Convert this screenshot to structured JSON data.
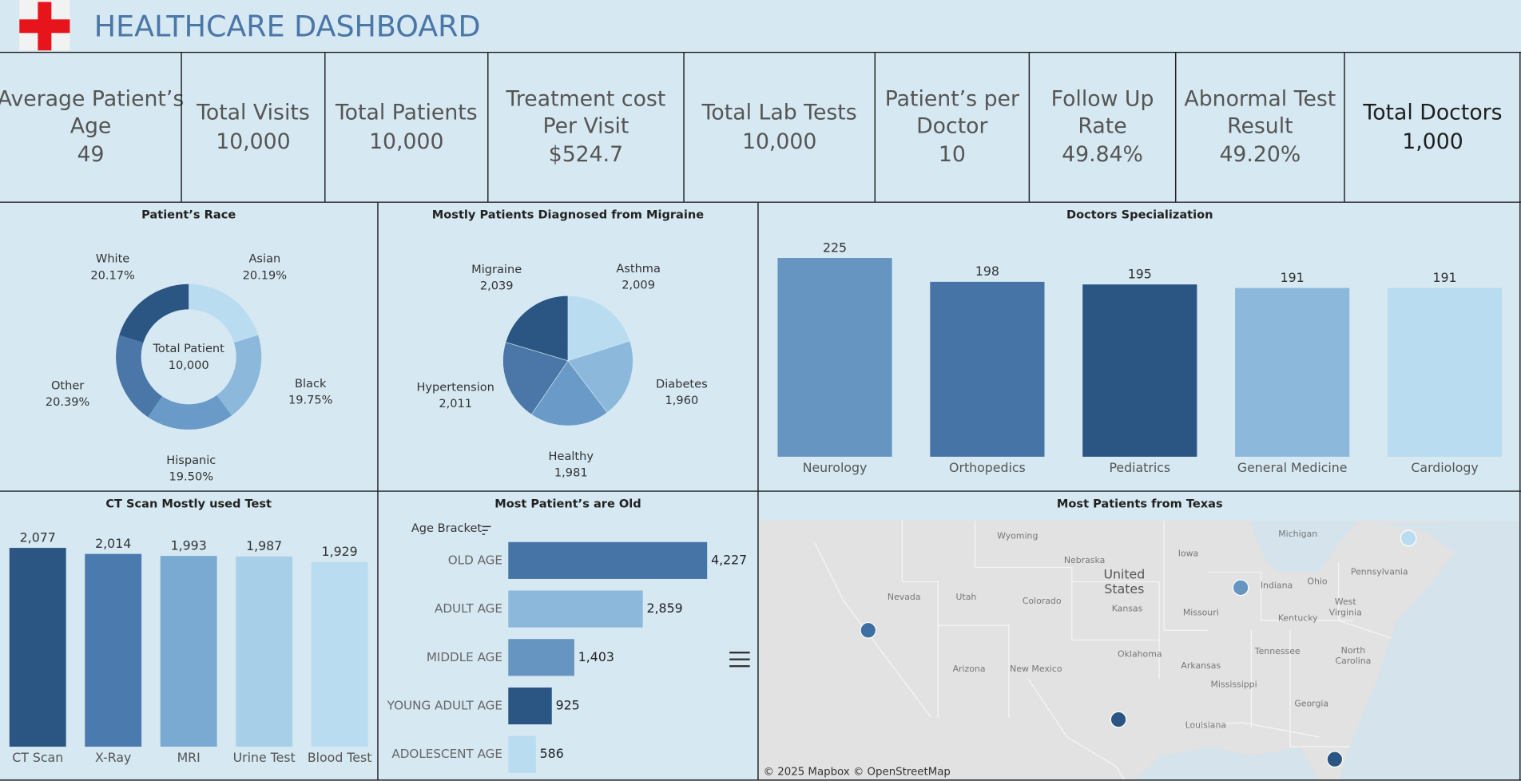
{
  "header": {
    "title": "HEALTHCARE DASHBOARD"
  },
  "kpis": [
    {
      "label_lines": [
        "Average Patient’s",
        "Age"
      ],
      "value": "49"
    },
    {
      "label_lines": [
        "Total Visits"
      ],
      "value": "10,000"
    },
    {
      "label_lines": [
        "Total Patients"
      ],
      "value": "10,000"
    },
    {
      "label_lines": [
        "Treatment cost",
        "Per Visit"
      ],
      "value": "$524.7"
    },
    {
      "label_lines": [
        "Total Lab Tests"
      ],
      "value": "10,000"
    },
    {
      "label_lines": [
        "Patient’s per",
        "Doctor"
      ],
      "value": "10"
    },
    {
      "label_lines": [
        "Follow Up",
        "Rate"
      ],
      "value": "49.84%"
    },
    {
      "label_lines": [
        "Abnormal Test",
        "Result"
      ],
      "value": "49.20%"
    },
    {
      "label_lines": [
        "Total Doctors"
      ],
      "value": "1,000"
    }
  ],
  "chart_data": [
    {
      "type": "donut",
      "title": "Patient’s Race",
      "categories": [
        "Asian",
        "Black",
        "Hispanic",
        "Other",
        "White"
      ],
      "values": [
        20.19,
        19.75,
        19.5,
        20.39,
        20.17
      ],
      "value_labels": [
        "20.19%",
        "19.75%",
        "19.50%",
        "20.39%",
        "20.17%"
      ],
      "colors": [
        "#b9dcf0",
        "#8cb8dc",
        "#6a9bc8",
        "#4a76a8",
        "#2b5582"
      ],
      "center_label": "Total Patient",
      "total": {
        "value": 10000,
        "label": "10,000"
      }
    },
    {
      "type": "pie",
      "title": "Mostly Patients Diagnosed from Migraine",
      "categories": [
        "Asthma",
        "Diabetes",
        "Healthy",
        "Hypertension",
        "Migraine"
      ],
      "values": [
        2009,
        1960,
        1981,
        2011,
        2039
      ],
      "value_labels": [
        "2,009",
        "1,960",
        "1,981",
        "2,011",
        "2,039"
      ],
      "colors": [
        "#b9dcf0",
        "#8cb8dc",
        "#6a9bc8",
        "#4a76a8",
        "#2b5582"
      ]
    },
    {
      "type": "bar",
      "title": "Doctors Specialization",
      "categories": [
        "Neurology",
        "Orthopedics",
        "Pediatrics",
        "General Medicine",
        "Cardiology"
      ],
      "values": [
        225,
        198,
        195,
        191,
        191
      ],
      "colors": [
        "#6695c2",
        "#4674a6",
        "#2b5582",
        "#8cb8dc",
        "#b9dcf0"
      ]
    },
    {
      "type": "bar",
      "title": "CT Scan Mostly used Test",
      "categories": [
        "CT Scan",
        "X-Ray",
        "MRI",
        "Urine Test",
        "Blood Test"
      ],
      "values": [
        2077,
        2014,
        1993,
        1987,
        1929
      ],
      "value_labels": [
        "2,077",
        "2,014",
        "1,993",
        "1,987",
        "1,929"
      ],
      "colors": [
        "#2b5582",
        "#4a7aae",
        "#7aaad2",
        "#a8cfe8",
        "#b9dcf0"
      ]
    },
    {
      "type": "hbar",
      "title": "Most Patient’s are Old",
      "y_label": "Age Bracket",
      "categories": [
        "OLD AGE",
        "ADULT AGE",
        "MIDDLE AGE",
        "YOUNG ADULT AGE",
        "ADOLESCENT AGE"
      ],
      "values": [
        4227,
        2859,
        1403,
        925,
        586
      ],
      "value_labels": [
        "4,227",
        "2,859",
        "1,403",
        "925",
        "586"
      ],
      "colors": [
        "#4674a6",
        "#8cb8dc",
        "#6695c2",
        "#2b5582",
        "#b9dcf0"
      ]
    },
    {
      "type": "map",
      "title": "Most Patients from Texas",
      "place_labels": [
        "Wyoming",
        "Nebraska",
        "United",
        "States",
        "Iowa",
        "Michigan",
        "Nevada",
        "Utah",
        "Colorado",
        "Kansas",
        "Missouri",
        "Indiana",
        "Ohio",
        "Pennsylvania",
        "Kentucky",
        "West",
        "Virginia",
        "Tennessee",
        "North",
        "Carolina",
        "Oklahoma",
        "Arkansas",
        "Arizona",
        "New Mexico",
        "Mississippi",
        "Georgia",
        "Louisiana"
      ],
      "attribution": "© 2025 Mapbox © OpenStreetMap"
    }
  ]
}
